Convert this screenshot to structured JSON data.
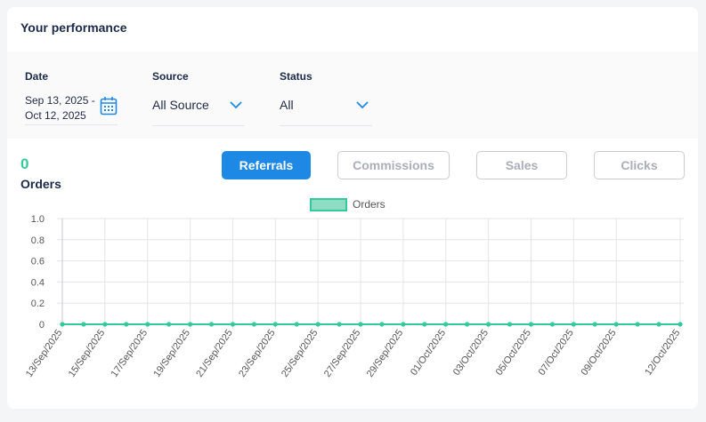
{
  "header": {
    "title": "Your performance"
  },
  "filters": {
    "date": {
      "label": "Date",
      "line1": "Sep 13, 2025 -",
      "line2": "Oct 12, 2025"
    },
    "source": {
      "label": "Source",
      "value": "All Source"
    },
    "status": {
      "label": "Status",
      "value": "All"
    }
  },
  "summary": {
    "count": "0",
    "label": "Orders"
  },
  "tabs": [
    {
      "label": "Referrals",
      "active": true
    },
    {
      "label": "Commissions",
      "active": false
    },
    {
      "label": "Sales",
      "active": false
    },
    {
      "label": "Clicks",
      "active": false
    }
  ],
  "colors": {
    "accent": "#1e88e5",
    "series": "#35c9a0",
    "series_fill": "#8fdcc5"
  },
  "chart_data": {
    "type": "line",
    "legend_position": "top-center",
    "grid": true,
    "ylim": [
      0,
      1.0
    ],
    "yticks": [
      "1.0",
      "0.8",
      "0.6",
      "0.4",
      "0.2",
      "0"
    ],
    "ytick_values": [
      1.0,
      0.8,
      0.6,
      0.4,
      0.2,
      0
    ],
    "xtick_labels": [
      "13/Sep/2025",
      "15/Sep/2025",
      "17/Sep/2025",
      "19/Sep/2025",
      "21/Sep/2025",
      "23/Sep/2025",
      "25/Sep/2025",
      "27/Sep/2025",
      "29/Sep/2025",
      "01/Oct/2025",
      "03/Oct/2025",
      "05/Oct/2025",
      "07/Oct/2025",
      "09/Oct/2025",
      "12/Oct/2025"
    ],
    "x": [
      "13/Sep/2025",
      "14/Sep/2025",
      "15/Sep/2025",
      "16/Sep/2025",
      "17/Sep/2025",
      "18/Sep/2025",
      "19/Sep/2025",
      "20/Sep/2025",
      "21/Sep/2025",
      "22/Sep/2025",
      "23/Sep/2025",
      "24/Sep/2025",
      "25/Sep/2025",
      "26/Sep/2025",
      "27/Sep/2025",
      "28/Sep/2025",
      "29/Sep/2025",
      "30/Sep/2025",
      "01/Oct/2025",
      "02/Oct/2025",
      "03/Oct/2025",
      "04/Oct/2025",
      "05/Oct/2025",
      "06/Oct/2025",
      "07/Oct/2025",
      "08/Oct/2025",
      "09/Oct/2025",
      "10/Oct/2025",
      "11/Oct/2025",
      "12/Oct/2025"
    ],
    "series": [
      {
        "name": "Orders",
        "values": [
          0,
          0,
          0,
          0,
          0,
          0,
          0,
          0,
          0,
          0,
          0,
          0,
          0,
          0,
          0,
          0,
          0,
          0,
          0,
          0,
          0,
          0,
          0,
          0,
          0,
          0,
          0,
          0,
          0,
          0
        ]
      }
    ]
  }
}
